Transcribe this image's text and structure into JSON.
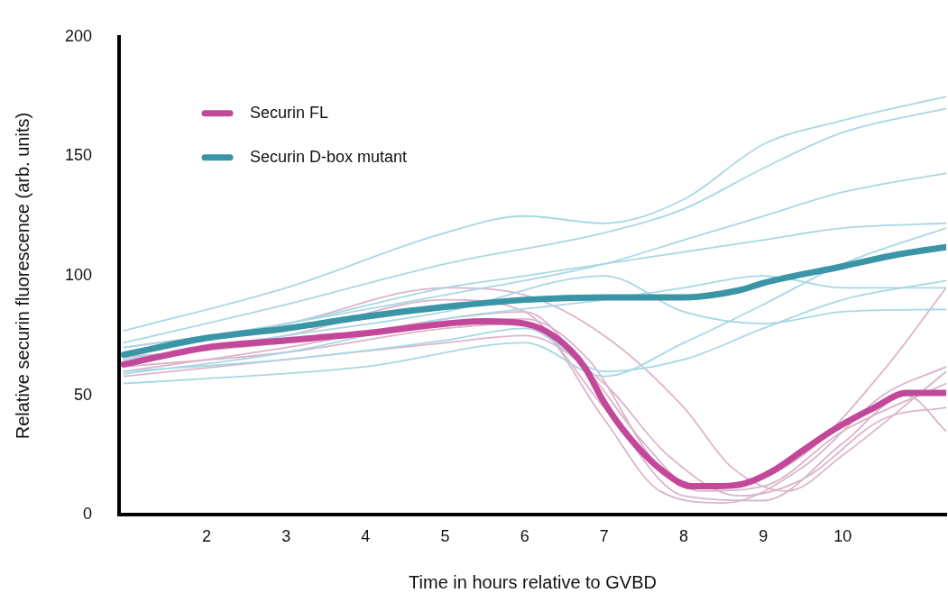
{
  "chart_data": {
    "type": "line",
    "xlabel": "Time in hours relative to GVBD",
    "ylabel": "Relative securin fluorescence (arb. units)",
    "xlim": [
      0.9,
      11.3
    ],
    "xticks": [
      2,
      3,
      4,
      5,
      6,
      7,
      8,
      9,
      10
    ],
    "ylim": [
      0,
      200
    ],
    "yticks": [
      0,
      50,
      100,
      150,
      200
    ],
    "grid": false,
    "legend": "top left",
    "marker": "none",
    "line_style": "solid",
    "series": [
      {
        "color": "#a8d8e4",
        "x": [
          0.96,
          3,
          5,
          6,
          7,
          8,
          9,
          10,
          11.3
        ],
        "values": [
          77,
          95,
          118,
          125,
          122,
          132,
          155,
          165,
          175
        ]
      },
      {
        "color": "#a8d8e4",
        "x": [
          0.96,
          3,
          5,
          7,
          8,
          9,
          10,
          11.3
        ],
        "values": [
          72,
          88,
          105,
          118,
          128,
          145,
          160,
          170
        ]
      },
      {
        "color": "#a8d8e4",
        "x": [
          0.96,
          3,
          5,
          7,
          8,
          9,
          10,
          11.3
        ],
        "values": [
          68,
          80,
          92,
          105,
          115,
          125,
          135,
          143
        ]
      },
      {
        "color": "#a8d8e4",
        "x": [
          0.96,
          2,
          4,
          6,
          7,
          8,
          9,
          10,
          11.3
        ],
        "values": [
          55,
          57,
          62,
          72,
          58,
          72,
          88,
          105,
          120
        ]
      },
      {
        "color": "#a8d8e4",
        "x": [
          0.96,
          3,
          5,
          6,
          7,
          8,
          9,
          10,
          11.3
        ],
        "values": [
          60,
          65,
          73,
          78,
          60,
          65,
          78,
          90,
          98
        ]
      },
      {
        "color": "#a8d8e4",
        "x": [
          0.96,
          3,
          5,
          7,
          8,
          9,
          10,
          11.3
        ],
        "values": [
          65,
          75,
          85,
          100,
          85,
          80,
          85,
          86
        ]
      },
      {
        "color": "#a8d8e4",
        "x": [
          0.96,
          3,
          5,
          6,
          7,
          8,
          9,
          10,
          11.3
        ],
        "values": [
          70,
          80,
          95,
          100,
          105,
          110,
          115,
          120,
          122
        ]
      },
      {
        "color": "#a8d8e4",
        "x": [
          0.96,
          3,
          5,
          7,
          8,
          9,
          10,
          11.3
        ],
        "values": [
          59,
          68,
          82,
          90,
          95,
          100,
          95,
          95
        ]
      },
      {
        "color": "#dbb5cb",
        "x": [
          0.96,
          3,
          5,
          6,
          6.8,
          7.5,
          8.2,
          9,
          10,
          11.3
        ],
        "values": [
          60,
          70,
          82,
          85,
          60,
          30,
          10,
          12,
          35,
          55
        ]
      },
      {
        "color": "#dbb5cb",
        "x": [
          0.96,
          3,
          5,
          6,
          7,
          7.7,
          8.5,
          9.5,
          10.5,
          11.3
        ],
        "values": [
          65,
          75,
          90,
          85,
          40,
          10,
          5,
          20,
          50,
          62
        ]
      },
      {
        "color": "#dbb5cb",
        "x": [
          0.96,
          3,
          5,
          6,
          7,
          7.8,
          8.7,
          9.5,
          10.5,
          11.3
        ],
        "values": [
          58,
          65,
          72,
          75,
          55,
          25,
          8,
          15,
          40,
          45
        ]
      },
      {
        "color": "#dbb5cb",
        "x": [
          0.96,
          3,
          5,
          6,
          7,
          8,
          8.6,
          9.3,
          10,
          11.3
        ],
        "values": [
          70,
          80,
          95,
          92,
          75,
          45,
          20,
          10,
          25,
          60
        ]
      },
      {
        "color": "#dbb5cb",
        "x": [
          0.96,
          3,
          5,
          6,
          7,
          8,
          9,
          10,
          10.8,
          11.3
        ],
        "values": [
          62,
          68,
          78,
          80,
          45,
          8,
          6,
          30,
          50,
          35
        ]
      },
      {
        "color": "#dbb5cb",
        "x": [
          0.96,
          3,
          5,
          6,
          6.8,
          7.7,
          8.5,
          9.5,
          10.5,
          11.3
        ],
        "values": [
          66,
          72,
          80,
          82,
          65,
          20,
          12,
          25,
          60,
          95
        ]
      },
      {
        "name": "Securin FL",
        "color": "#c3489a",
        "x": [
          0.96,
          2,
          3,
          4,
          5,
          5.5,
          6,
          6.4,
          6.75,
          7,
          7.3,
          7.75,
          8.1,
          8.4,
          8.75,
          9.1,
          9.5,
          9.9,
          10.4,
          10.8,
          11.3
        ],
        "values": [
          63,
          70,
          73,
          76,
          80,
          81,
          80,
          74,
          62,
          47,
          33,
          18,
          12,
          12,
          13,
          18,
          27,
          36,
          45,
          51,
          51
        ]
      },
      {
        "name": "Securin D-box mutant",
        "color": "#3a95a6",
        "x": [
          0.96,
          2,
          3,
          4,
          5,
          6,
          7,
          8,
          8.7,
          9,
          10,
          10.7,
          11.3
        ],
        "values": [
          67,
          74,
          78,
          83,
          87,
          90,
          91,
          91,
          94,
          97,
          104,
          109,
          112
        ]
      }
    ]
  }
}
